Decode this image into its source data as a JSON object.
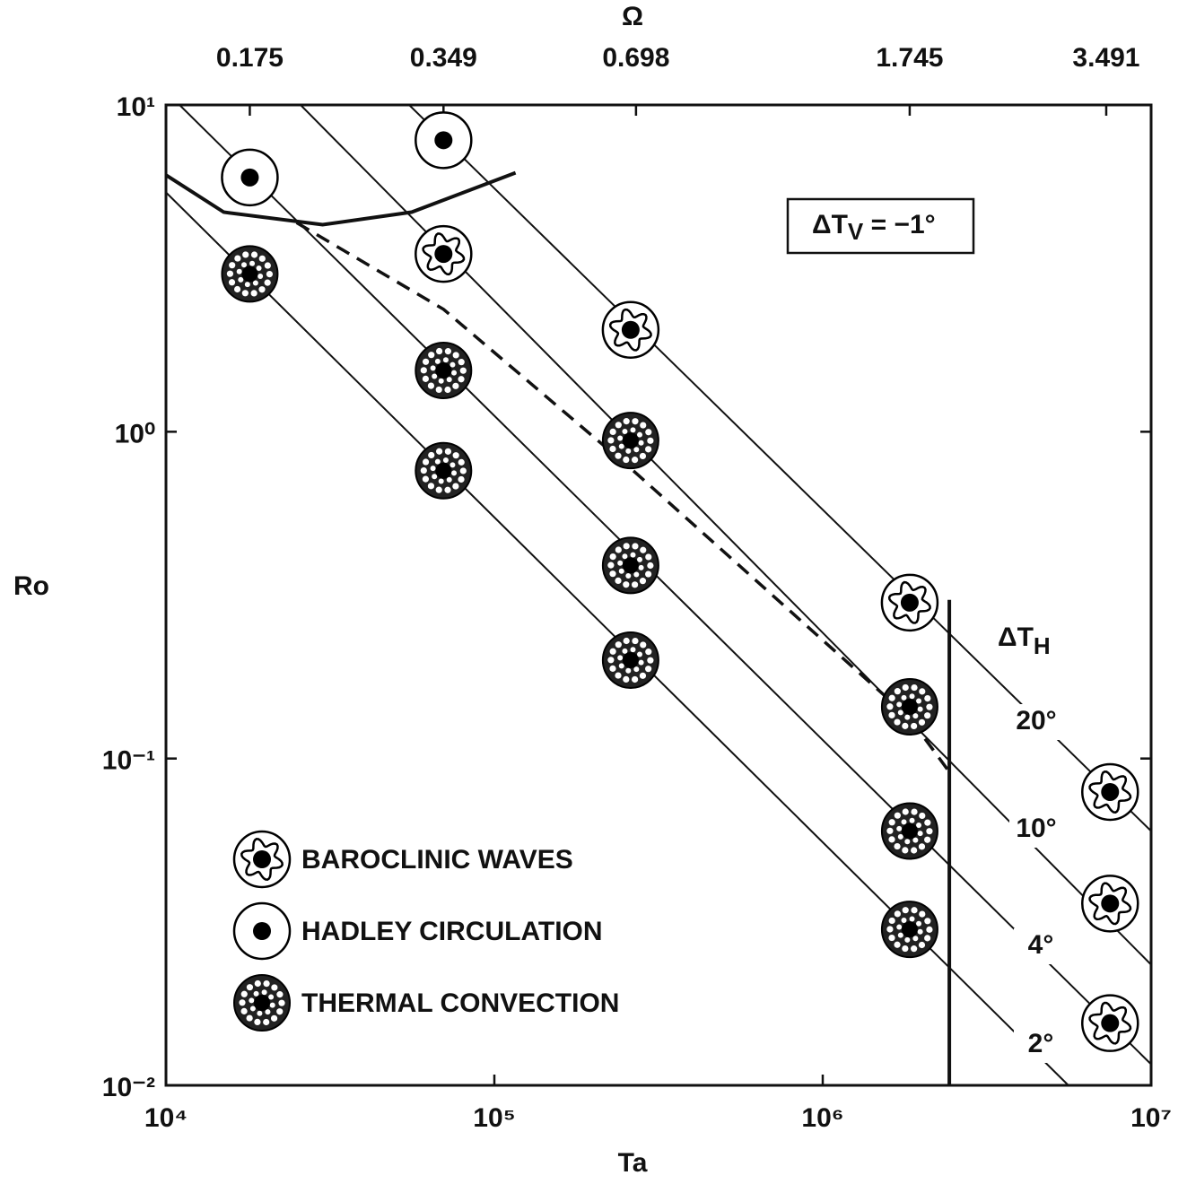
{
  "chart_data": {
    "type": "scatter",
    "x_label": "Ta",
    "y_label": "Ro",
    "x2_label": "Ω",
    "x_scale": "log",
    "y_scale": "log",
    "xlim": [
      10000,
      10000000
    ],
    "ylim": [
      0.01,
      10
    ],
    "xticks": [
      {
        "value": 10000,
        "label": "10⁴"
      },
      {
        "value": 100000,
        "label": "10⁵"
      },
      {
        "value": 1000000,
        "label": "10⁶"
      },
      {
        "value": 10000000,
        "label": "10⁷"
      }
    ],
    "yticks": [
      {
        "value": 0.01,
        "label": "10⁻²"
      },
      {
        "value": 0.1,
        "label": "10⁻¹"
      },
      {
        "value": 1,
        "label": "10⁰"
      },
      {
        "value": 10,
        "label": "10¹"
      }
    ],
    "x2ticks": [
      {
        "value": 18000,
        "label": "0.175"
      },
      {
        "value": 70000,
        "label": "0.349"
      },
      {
        "value": 270000,
        "label": "0.698"
      },
      {
        "value": 1840000,
        "label": "1.745"
      },
      {
        "value": 7300000,
        "label": "3.491"
      }
    ],
    "grid": false,
    "legend": "lower left",
    "series": [
      {
        "name": "BAROCLINIC WAVES",
        "marker": "wave",
        "color": "#000000",
        "x": [
          70000,
          260000,
          1840000,
          7500000,
          7500000,
          7500000
        ],
        "values": [
          3.5,
          2.05,
          0.3,
          0.079,
          0.036,
          0.0155
        ]
      },
      {
        "name": "HADLEY CIRCULATION",
        "marker": "open-dot",
        "color": "#000000",
        "x": [
          18000,
          70000
        ],
        "values": [
          6.0,
          7.8
        ]
      },
      {
        "name": "THERMAL CONVECTION",
        "marker": "speckle",
        "color": "#000000",
        "x": [
          18000,
          70000,
          70000,
          260000,
          260000,
          260000,
          1840000,
          1840000,
          1840000
        ],
        "values": [
          3.04,
          1.54,
          0.76,
          0.94,
          0.39,
          0.2,
          0.144,
          0.06,
          0.03
        ]
      }
    ],
    "reference_lines": [
      {
        "name": "20°",
        "x": [
          55000,
          10000000
        ],
        "values": [
          10,
          0.06
        ]
      },
      {
        "name": "10°",
        "x": [
          25700,
          10000000
        ],
        "values": [
          10,
          0.0234
        ]
      },
      {
        "name": "4°",
        "x": [
          11000,
          10000000
        ],
        "values": [
          10,
          0.0116
        ]
      },
      {
        "name": "2°",
        "x": [
          10000,
          5600000
        ],
        "values": [
          5.4,
          0.01
        ]
      }
    ],
    "reference_lines_title": {
      "text": "ΔT",
      "sub": "H"
    },
    "curves": [
      {
        "style": "solid",
        "x": [
          10000,
          15000,
          30000,
          56000,
          116000
        ],
        "values": [
          6.1,
          4.7,
          4.3,
          4.7,
          6.2
        ]
      },
      {
        "style": "dashed",
        "x": [
          25000,
          70000,
          265000,
          1840000,
          2430000
        ],
        "values": [
          4.36,
          2.37,
          0.76,
          0.133,
          0.091
        ]
      },
      {
        "style": "solid",
        "x": [
          2430000,
          2430000
        ],
        "values": [
          0.306,
          0.01
        ]
      }
    ],
    "annotation": {
      "text": "ΔT",
      "sub": "V",
      "rest": " = −1°"
    }
  }
}
